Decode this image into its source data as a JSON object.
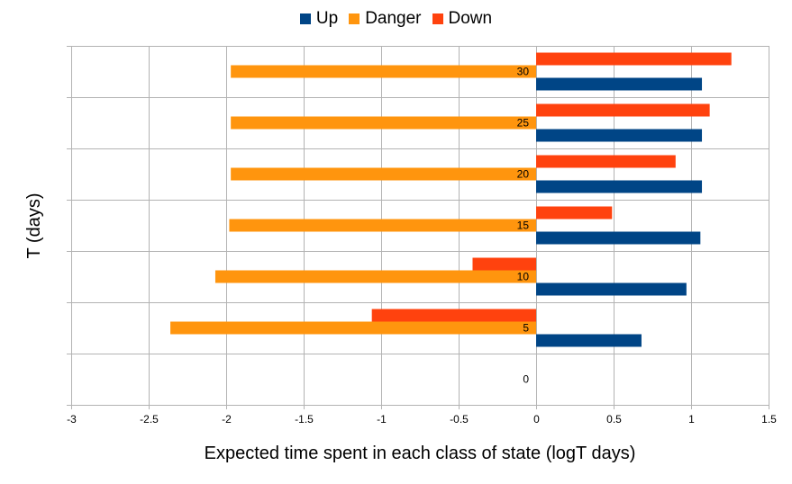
{
  "chart_data": {
    "type": "bar",
    "orientation": "horizontal",
    "title": "",
    "xlabel": "Expected time spent in each class of state (logT days)",
    "ylabel": "T (days)",
    "xlim": [
      -3,
      1.5
    ],
    "x_ticks": [
      "-3",
      "-2.5",
      "-2",
      "-1.5",
      "-1",
      "-0.5",
      "0",
      "0.5",
      "1",
      "1.5"
    ],
    "categories": [
      "0",
      "5",
      "10",
      "15",
      "20",
      "25",
      "30"
    ],
    "series": [
      {
        "name": "Up",
        "color": "#004586",
        "values": [
          null,
          0.68,
          0.97,
          1.06,
          1.07,
          1.07,
          1.07
        ]
      },
      {
        "name": "Danger",
        "color": "#ff950e",
        "values": [
          null,
          -2.36,
          -2.07,
          -1.98,
          -1.97,
          -1.97,
          -1.97
        ]
      },
      {
        "name": "Down",
        "color": "#ff420e",
        "values": [
          null,
          -1.06,
          -0.41,
          0.49,
          0.9,
          1.12,
          1.26
        ]
      }
    ],
    "legend_position": "top",
    "grid": true
  }
}
